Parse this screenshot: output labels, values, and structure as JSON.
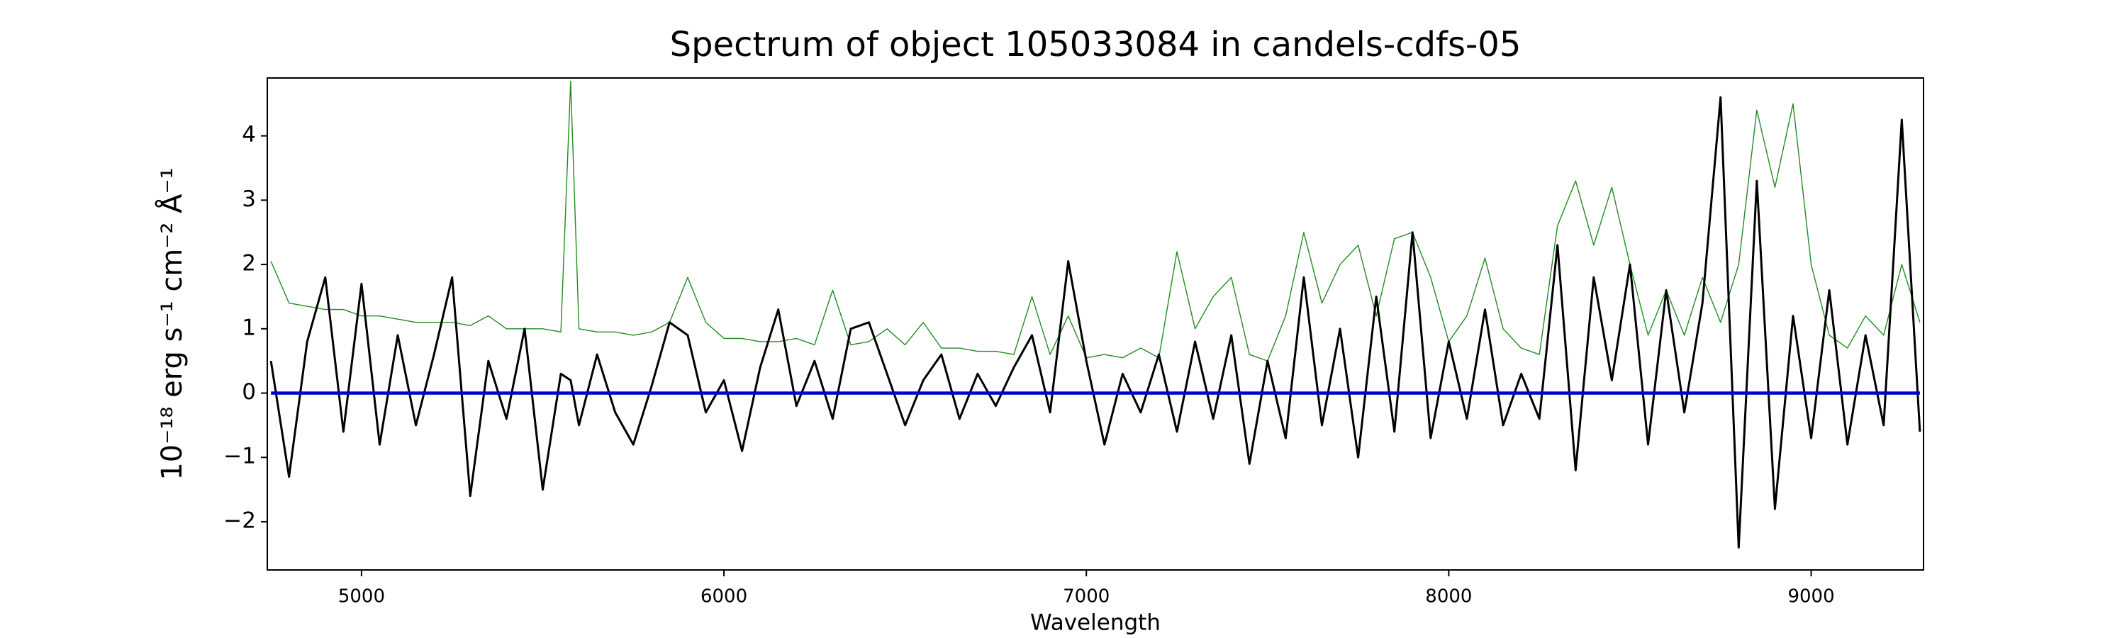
{
  "chart_data": {
    "type": "line",
    "title": "Spectrum of object 105033084 in candels-cdfs-05",
    "xlabel": "Wavelength",
    "ylabel": "10⁻¹⁸ erg s⁻¹ cm⁻² Å⁻¹",
    "x": [
      4750,
      4800,
      4850,
      4900,
      4950,
      5000,
      5050,
      5100,
      5150,
      5200,
      5250,
      5300,
      5350,
      5400,
      5450,
      5500,
      5550,
      5577,
      5600,
      5650,
      5700,
      5750,
      5800,
      5850,
      5900,
      5950,
      6000,
      6050,
      6100,
      6150,
      6200,
      6250,
      6300,
      6350,
      6400,
      6450,
      6500,
      6550,
      6600,
      6650,
      6700,
      6750,
      6800,
      6850,
      6900,
      6950,
      7000,
      7050,
      7100,
      7150,
      7200,
      7250,
      7300,
      7350,
      7400,
      7450,
      7500,
      7550,
      7600,
      7650,
      7700,
      7750,
      7800,
      7850,
      7900,
      7950,
      8000,
      8050,
      8100,
      8150,
      8200,
      8250,
      8300,
      8350,
      8400,
      8450,
      8500,
      8550,
      8600,
      8650,
      8700,
      8750,
      8800,
      8850,
      8900,
      8950,
      9000,
      9050,
      9100,
      9150,
      9200,
      9250,
      9300
    ],
    "series": [
      {
        "color": "#228b22",
        "width": 1.4,
        "values": [
          2.05,
          1.4,
          1.35,
          1.3,
          1.3,
          1.2,
          1.2,
          1.15,
          1.1,
          1.1,
          1.1,
          1.05,
          1.2,
          1.0,
          1.0,
          1.0,
          0.95,
          4.85,
          1.0,
          0.95,
          0.95,
          0.9,
          0.95,
          1.1,
          1.8,
          1.1,
          0.85,
          0.85,
          0.8,
          0.8,
          0.85,
          0.75,
          1.6,
          0.75,
          0.8,
          1.0,
          0.75,
          1.1,
          0.7,
          0.7,
          0.65,
          0.65,
          0.6,
          1.5,
          0.6,
          1.2,
          0.55,
          0.6,
          0.55,
          0.7,
          0.55,
          2.2,
          1.0,
          1.5,
          1.8,
          0.6,
          0.5,
          1.2,
          2.5,
          1.4,
          2.0,
          2.3,
          1.2,
          2.4,
          2.5,
          1.8,
          0.8,
          1.2,
          2.1,
          1.0,
          0.7,
          0.6,
          2.6,
          3.3,
          2.3,
          3.2,
          2.0,
          0.9,
          1.6,
          0.9,
          1.8,
          1.1,
          2.0,
          4.4,
          3.2,
          4.5,
          2.0,
          0.9,
          0.7,
          1.2,
          0.9,
          2.0,
          1.1
        ]
      },
      {
        "color": "#000000",
        "width": 3,
        "values": [
          0.5,
          -1.3,
          0.8,
          1.8,
          -0.6,
          1.7,
          -0.8,
          0.9,
          -0.5,
          0.6,
          1.8,
          -1.6,
          0.5,
          -0.4,
          1.0,
          -1.5,
          0.3,
          0.2,
          -0.5,
          0.6,
          -0.3,
          -0.8,
          0.1,
          1.1,
          0.9,
          -0.3,
          0.2,
          -0.9,
          0.4,
          1.3,
          -0.2,
          0.5,
          -0.4,
          1.0,
          1.1,
          0.3,
          -0.5,
          0.2,
          0.6,
          -0.4,
          0.3,
          -0.2,
          0.4,
          0.9,
          -0.3,
          2.05,
          0.5,
          -0.8,
          0.3,
          -0.3,
          0.6,
          -0.6,
          0.8,
          -0.4,
          0.9,
          -1.1,
          0.5,
          -0.7,
          1.8,
          -0.5,
          1.0,
          -1.0,
          1.5,
          -0.6,
          2.5,
          -0.7,
          0.8,
          -0.4,
          1.3,
          -0.5,
          0.3,
          -0.4,
          2.3,
          -1.2,
          1.8,
          0.2,
          2.0,
          -0.8,
          1.6,
          -0.3,
          1.4,
          4.6,
          -2.4,
          3.3,
          -1.8,
          1.2,
          -0.7,
          1.6,
          -0.8,
          0.9,
          -0.5,
          4.25,
          -0.6
        ]
      },
      {
        "color": "#0000cd",
        "width": 4.5,
        "values": [
          0,
          0,
          0,
          0,
          0,
          0,
          0,
          0,
          0,
          0,
          0,
          0,
          0,
          0,
          0,
          0,
          0,
          0,
          0,
          0,
          0,
          0,
          0,
          0,
          0,
          0,
          0,
          0,
          0,
          0,
          0,
          0,
          0,
          0,
          0,
          0,
          0,
          0,
          0,
          0,
          0,
          0,
          0,
          0,
          0,
          0,
          0,
          0,
          0,
          0,
          0,
          0,
          0,
          0,
          0,
          0,
          0,
          0,
          0,
          0,
          0,
          0,
          0,
          0,
          0,
          0,
          0,
          0,
          0,
          0,
          0,
          0,
          0,
          0,
          0,
          0,
          0,
          0,
          0,
          0,
          0,
          0,
          0,
          0,
          0,
          0,
          0,
          0,
          0,
          0,
          0,
          0,
          0
        ]
      }
    ],
    "xlim": [
      4740,
      9310
    ],
    "ylim": [
      -2.75,
      4.9
    ],
    "xticks": [
      5000,
      6000,
      7000,
      8000,
      9000
    ],
    "yticks": [
      -2,
      -1,
      0,
      1,
      2,
      3,
      4
    ]
  }
}
